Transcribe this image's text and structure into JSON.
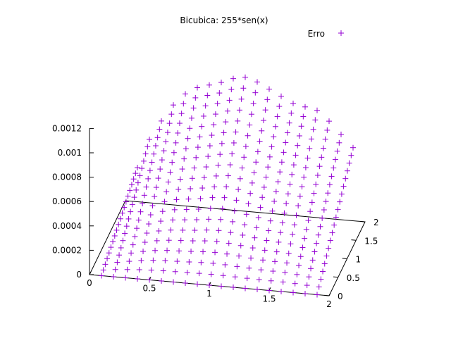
{
  "chart_data": {
    "type": "scatter",
    "dimensions": 3,
    "title": "Bicubica: 255*sen(x)",
    "xlabel": "",
    "ylabel": "",
    "zlabel": "",
    "xlim": [
      0,
      2
    ],
    "ylim": [
      0,
      2
    ],
    "zlim": [
      0,
      0.0012
    ],
    "x_ticks": [
      "0",
      "0.5",
      "1",
      "1.5",
      "2"
    ],
    "y_ticks": [
      "0",
      "0.5",
      "1",
      "1.5",
      "2"
    ],
    "z_ticks": [
      "0",
      "0.0002",
      "0.0004",
      "0.0006",
      "0.0008",
      "0.001",
      "0.0012"
    ],
    "x_tick_values": [
      0,
      0.5,
      1,
      1.5,
      2
    ],
    "y_tick_values": [
      0,
      0.5,
      1,
      1.5,
      2
    ],
    "z_tick_values": [
      0,
      0.0002,
      0.0004,
      0.0006,
      0.0008,
      0.001,
      0.0012
    ],
    "legend_position": "top-right",
    "grid": false,
    "marker": "+",
    "series": [
      {
        "name": "Erro",
        "color": "#9400d3",
        "x_values": [
          0.1,
          0.2,
          0.3,
          0.4,
          0.5,
          0.6,
          0.7,
          0.8,
          0.9,
          1.0,
          1.1,
          1.2,
          1.3,
          1.4,
          1.5,
          1.6,
          1.7,
          1.8,
          1.9
        ],
        "y_range": [
          0,
          2
        ],
        "y_samples_per_line": 20,
        "z_peaks": [
          0.00028,
          0.00052,
          0.00068,
          0.00082,
          0.00092,
          0.00098,
          0.00101,
          0.00104,
          0.00108,
          0.0011,
          0.00107,
          0.00102,
          0.00097,
          0.00092,
          0.0009,
          0.00088,
          0.0008,
          0.0007,
          0.0006
        ]
      }
    ]
  }
}
